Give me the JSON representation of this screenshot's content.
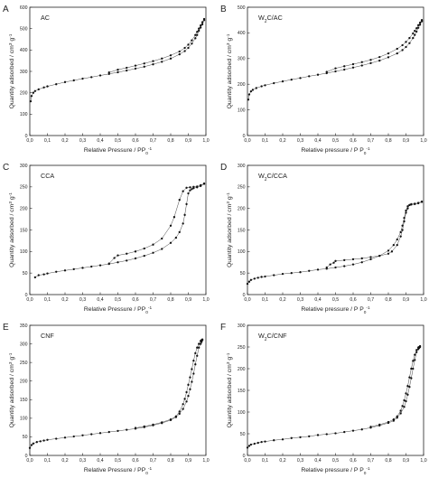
{
  "chart_data": [
    {
      "type": "line",
      "panel_label": "A",
      "sample_html": "AC",
      "xlabel_html": "Relative Pressure / PP<tspan baseline-shift=\"sub\" font-size=\"70%\">0</tspan><tspan baseline-shift=\"super\" font-size=\"70%\">-1</tspan>",
      "ylabel_html": "Quantity adsorbed / cm<tspan baseline-shift=\"super\" font-size=\"70%\">3</tspan> g<tspan baseline-shift=\"super\" font-size=\"70%\">-1</tspan>",
      "xlim": [
        0,
        1
      ],
      "ylim": [
        0,
        600
      ],
      "xticks": [
        "0,0",
        "0,1",
        "0,2",
        "0,3",
        "0,4",
        "0,5",
        "0,6",
        "0,7",
        "0,8",
        "0,9",
        "1,0"
      ],
      "yticks": [
        0,
        100,
        200,
        300,
        400,
        500,
        600
      ],
      "series": [
        {
          "x": [
            0.005,
            0.01,
            0.02,
            0.03,
            0.05,
            0.08,
            0.1,
            0.15,
            0.2,
            0.25,
            0.3,
            0.35,
            0.4,
            0.45,
            0.5,
            0.55,
            0.6,
            0.65,
            0.7,
            0.75,
            0.8,
            0.85,
            0.88,
            0.9,
            0.92,
            0.94,
            0.95,
            0.96,
            0.97,
            0.98,
            0.99
          ],
          "y": [
            160,
            185,
            200,
            208,
            216,
            225,
            230,
            240,
            250,
            258,
            266,
            273,
            281,
            288,
            296,
            304,
            313,
            322,
            333,
            345,
            360,
            380,
            395,
            410,
            430,
            455,
            470,
            490,
            505,
            520,
            540
          ]
        },
        {
          "x": [
            0.99,
            0.98,
            0.97,
            0.96,
            0.95,
            0.94,
            0.92,
            0.9,
            0.88,
            0.85,
            0.8,
            0.75,
            0.7,
            0.65,
            0.6,
            0.55,
            0.5,
            0.45
          ],
          "y": [
            545,
            530,
            515,
            500,
            485,
            470,
            445,
            425,
            410,
            393,
            375,
            360,
            348,
            337,
            327,
            317,
            308,
            295
          ]
        }
      ]
    },
    {
      "type": "line",
      "panel_label": "B",
      "sample_html": "W<tspan baseline-shift=\"sub\" font-size=\"70%\">2</tspan>C/AC",
      "xlabel_html": "Relative pressure / P P<tspan baseline-shift=\"sub\" font-size=\"70%\">0</tspan><tspan baseline-shift=\"super\" font-size=\"70%\">-1</tspan>",
      "ylabel_html": "Quantity adsorbed / cm<tspan baseline-shift=\"super\" font-size=\"70%\">3</tspan> g<tspan baseline-shift=\"super\" font-size=\"70%\">-1</tspan>",
      "xlim": [
        0,
        1
      ],
      "ylim": [
        0,
        500
      ],
      "xticks": [
        "0,0",
        "0,1",
        "0,2",
        "0,3",
        "0,4",
        "0,5",
        "0,6",
        "0,7",
        "0,8",
        "0,9",
        "1,0"
      ],
      "yticks": [
        0,
        100,
        200,
        300,
        400,
        500
      ],
      "series": [
        {
          "x": [
            0.005,
            0.01,
            0.02,
            0.03,
            0.05,
            0.08,
            0.1,
            0.15,
            0.2,
            0.25,
            0.3,
            0.35,
            0.4,
            0.45,
            0.5,
            0.55,
            0.6,
            0.65,
            0.7,
            0.75,
            0.8,
            0.85,
            0.88,
            0.9,
            0.92,
            0.94,
            0.95,
            0.96,
            0.97,
            0.98,
            0.99
          ],
          "y": [
            140,
            160,
            172,
            178,
            185,
            192,
            196,
            204,
            211,
            218,
            224,
            231,
            237,
            243,
            250,
            257,
            265,
            273,
            282,
            292,
            305,
            320,
            333,
            345,
            360,
            380,
            392,
            405,
            420,
            432,
            445
          ]
        },
        {
          "x": [
            0.99,
            0.98,
            0.97,
            0.96,
            0.95,
            0.94,
            0.92,
            0.9,
            0.88,
            0.85,
            0.8,
            0.75,
            0.7,
            0.65,
            0.6,
            0.55,
            0.5,
            0.45
          ],
          "y": [
            450,
            440,
            430,
            418,
            408,
            398,
            380,
            365,
            352,
            338,
            320,
            306,
            295,
            286,
            278,
            270,
            262,
            248
          ]
        }
      ]
    },
    {
      "type": "line",
      "panel_label": "C",
      "sample_html": "CCA",
      "xlabel_html": "Relative Pressure / PP<tspan baseline-shift=\"sub\" font-size=\"70%\">0</tspan><tspan baseline-shift=\"super\" font-size=\"70%\">-1</tspan>",
      "ylabel_html": "Quantity adsorbed / cm<tspan baseline-shift=\"super\" font-size=\"70%\">3</tspan> g<tspan baseline-shift=\"super\" font-size=\"70%\">-1</tspan>",
      "xlim": [
        0,
        1
      ],
      "ylim": [
        0,
        300
      ],
      "xticks": [
        "0,0",
        "0,1",
        "0,2",
        "0,3",
        "0,4",
        "0,5",
        "0,6",
        "0,7",
        "0,8",
        "0,9",
        "1,0"
      ],
      "yticks": [
        0,
        50,
        100,
        150,
        200,
        250,
        300
      ],
      "series": [
        {
          "x": [
            0.03,
            0.05,
            0.08,
            0.1,
            0.15,
            0.2,
            0.25,
            0.3,
            0.35,
            0.4,
            0.45,
            0.5,
            0.55,
            0.6,
            0.65,
            0.7,
            0.75,
            0.8,
            0.83,
            0.85,
            0.87,
            0.88,
            0.89,
            0.9,
            0.91,
            0.92,
            0.93,
            0.95,
            0.97,
            0.99
          ],
          "y": [
            40,
            45,
            47,
            49,
            53,
            56,
            59,
            62,
            65,
            68,
            71,
            75,
            79,
            84,
            90,
            97,
            106,
            120,
            132,
            145,
            165,
            185,
            210,
            235,
            242,
            245,
            247,
            249,
            252,
            257
          ]
        },
        {
          "x": [
            0.99,
            0.97,
            0.95,
            0.93,
            0.91,
            0.89,
            0.87,
            0.85,
            0.82,
            0.8,
            0.75,
            0.7,
            0.65,
            0.6,
            0.55,
            0.5,
            0.48,
            0.45
          ],
          "y": [
            258,
            254,
            251,
            250,
            249,
            248,
            240,
            220,
            180,
            160,
            130,
            116,
            107,
            100,
            95,
            91,
            85,
            72
          ]
        }
      ]
    },
    {
      "type": "line",
      "panel_label": "D",
      "sample_html": "W<tspan baseline-shift=\"sub\" font-size=\"70%\">2</tspan>C/CCA",
      "xlabel_html": "Relative pressure / P P<tspan baseline-shift=\"sub\" font-size=\"70%\">0</tspan><tspan baseline-shift=\"super\" font-size=\"70%\">-1</tspan>",
      "ylabel_html": "Quantity adsorbed / cm<tspan baseline-shift=\"super\" font-size=\"70%\">3</tspan> g<tspan baseline-shift=\"super\" font-size=\"70%\">-1</tspan>",
      "xlim": [
        0,
        1
      ],
      "ylim": [
        0,
        300
      ],
      "xticks": [
        "0,0",
        "0,1",
        "0,2",
        "0,3",
        "0,4",
        "0,5",
        "0,6",
        "0,7",
        "0,8",
        "0,9",
        "1,0"
      ],
      "yticks": [
        0,
        50,
        100,
        150,
        200,
        250,
        300
      ],
      "series": [
        {
          "x": [
            0.0,
            0.01,
            0.02,
            0.04,
            0.06,
            0.08,
            0.1,
            0.15,
            0.2,
            0.25,
            0.3,
            0.35,
            0.4,
            0.45,
            0.5,
            0.55,
            0.6,
            0.65,
            0.7,
            0.75,
            0.8,
            0.83,
            0.85,
            0.87,
            0.88,
            0.89,
            0.9,
            0.91,
            0.92,
            0.93,
            0.95,
            0.97,
            0.99
          ],
          "y": [
            25,
            30,
            34,
            37,
            39,
            41,
            42,
            45,
            48,
            50,
            52,
            55,
            58,
            60,
            63,
            66,
            70,
            75,
            82,
            90,
            102,
            115,
            128,
            145,
            160,
            178,
            195,
            205,
            208,
            209,
            210,
            212,
            215
          ]
        },
        {
          "x": [
            0.99,
            0.97,
            0.95,
            0.93,
            0.92,
            0.91,
            0.9,
            0.89,
            0.88,
            0.87,
            0.85,
            0.82,
            0.8,
            0.75,
            0.7,
            0.65,
            0.6,
            0.55,
            0.5,
            0.49,
            0.47,
            0.45
          ],
          "y": [
            216,
            213,
            211,
            210,
            208,
            200,
            190,
            170,
            150,
            135,
            115,
            100,
            95,
            90,
            87,
            84,
            82,
            80,
            78,
            74,
            70,
            63
          ]
        }
      ]
    },
    {
      "type": "line",
      "panel_label": "E",
      "sample_html": "CNF",
      "xlabel_html": "Relative Pressure / PP<tspan baseline-shift=\"sub\" font-size=\"70%\">0</tspan><tspan baseline-shift=\"super\" font-size=\"70%\">-1</tspan>",
      "ylabel_html": "Quantity adsorbed / cm<tspan baseline-shift=\"super\" font-size=\"70%\">3</tspan> g<tspan baseline-shift=\"super\" font-size=\"70%\">-1</tspan>",
      "xlim": [
        0,
        1
      ],
      "ylim": [
        0,
        350
      ],
      "xticks": [
        "0,0",
        "0,1",
        "0,2",
        "0,3",
        "0,4",
        "0,5",
        "0,6",
        "0,7",
        "0,8",
        "0,9",
        "1,0"
      ],
      "yticks": [
        0,
        50,
        100,
        150,
        200,
        250,
        300,
        350
      ],
      "series": [
        {
          "x": [
            0.0,
            0.01,
            0.02,
            0.04,
            0.06,
            0.08,
            0.1,
            0.15,
            0.2,
            0.25,
            0.3,
            0.35,
            0.4,
            0.45,
            0.5,
            0.55,
            0.6,
            0.65,
            0.7,
            0.75,
            0.8,
            0.83,
            0.85,
            0.87,
            0.89,
            0.9,
            0.91,
            0.92,
            0.93,
            0.94,
            0.95,
            0.96,
            0.97,
            0.975,
            0.98
          ],
          "y": [
            20,
            28,
            32,
            36,
            38,
            40,
            42,
            45,
            48,
            51,
            54,
            57,
            60,
            63,
            66,
            69,
            72,
            76,
            81,
            87,
            95,
            103,
            112,
            125,
            145,
            160,
            178,
            198,
            220,
            245,
            268,
            290,
            300,
            305,
            310
          ]
        },
        {
          "x": [
            0.98,
            0.975,
            0.97,
            0.96,
            0.95,
            0.94,
            0.93,
            0.92,
            0.91,
            0.9,
            0.89,
            0.88,
            0.87,
            0.85,
            0.83,
            0.8,
            0.75,
            0.7,
            0.65,
            0.6
          ],
          "y": [
            312,
            310,
            308,
            300,
            290,
            275,
            255,
            232,
            210,
            190,
            170,
            152,
            138,
            118,
            105,
            97,
            89,
            83,
            78,
            74
          ]
        }
      ]
    },
    {
      "type": "line",
      "panel_label": "F",
      "sample_html": "W<tspan baseline-shift=\"sub\" font-size=\"70%\">2</tspan>C/CNF",
      "xlabel_html": "Relative pressure / P P<tspan baseline-shift=\"sub\" font-size=\"70%\">0</tspan><tspan baseline-shift=\"super\" font-size=\"70%\">-1</tspan>",
      "ylabel_html": "Quantity adsorbed / cm<tspan baseline-shift=\"super\" font-size=\"70%\">3</tspan> g<tspan baseline-shift=\"super\" font-size=\"70%\">-1</tspan>",
      "xlim": [
        0,
        1
      ],
      "ylim": [
        0,
        300
      ],
      "xticks": [
        "0,0",
        "0,1",
        "0,2",
        "0,3",
        "0,4",
        "0,5",
        "0,6",
        "0,7",
        "0,8",
        "0,9",
        "1,0"
      ],
      "yticks": [
        0,
        50,
        100,
        150,
        200,
        250,
        300
      ],
      "series": [
        {
          "x": [
            0.0,
            0.01,
            0.02,
            0.04,
            0.06,
            0.08,
            0.1,
            0.15,
            0.2,
            0.25,
            0.3,
            0.35,
            0.4,
            0.45,
            0.5,
            0.55,
            0.6,
            0.65,
            0.7,
            0.75,
            0.8,
            0.83,
            0.85,
            0.87,
            0.89,
            0.9,
            0.91,
            0.92,
            0.93,
            0.94,
            0.95,
            0.96,
            0.97,
            0.975,
            0.98
          ],
          "y": [
            18,
            22,
            25,
            27,
            29,
            31,
            32,
            35,
            37,
            40,
            42,
            44,
            47,
            49,
            51,
            54,
            57,
            60,
            64,
            69,
            75,
            80,
            87,
            97,
            112,
            125,
            140,
            158,
            178,
            200,
            220,
            238,
            245,
            248,
            250
          ]
        },
        {
          "x": [
            0.98,
            0.975,
            0.97,
            0.96,
            0.95,
            0.94,
            0.93,
            0.92,
            0.91,
            0.9,
            0.89,
            0.88,
            0.87,
            0.85,
            0.83,
            0.8,
            0.75,
            0.7
          ],
          "y": [
            252,
            250,
            249,
            243,
            232,
            218,
            200,
            180,
            160,
            143,
            127,
            114,
            103,
            90,
            83,
            77,
            71,
            66
          ]
        }
      ]
    }
  ]
}
